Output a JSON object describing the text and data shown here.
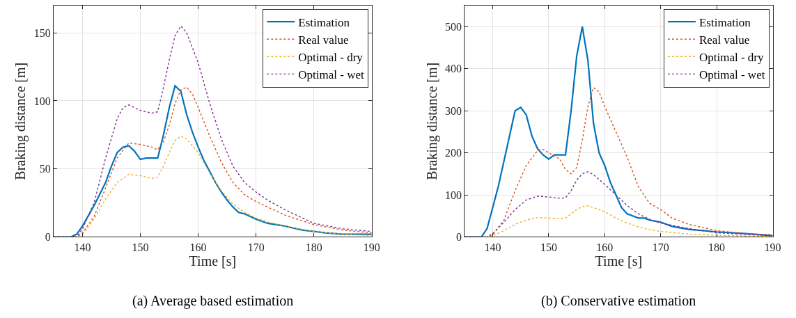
{
  "chart_data": [
    {
      "type": "line",
      "title": "(a) Average based estimation",
      "xlabel": "Time [s]",
      "ylabel": "Braking distance [m]",
      "xlim": [
        135,
        190
      ],
      "xticks": [
        140,
        150,
        160,
        170,
        180,
        190
      ],
      "ylim": [
        0,
        170
      ],
      "yticks": [
        0,
        50,
        100,
        150
      ],
      "grid": true,
      "legend": "top right",
      "series": [
        {
          "name": "Estimation",
          "color": "#0072bd",
          "line_style": "solid",
          "x": [
            135,
            138,
            139,
            140,
            142,
            144,
            145,
            146,
            147,
            148,
            149,
            150,
            151,
            152,
            153,
            154,
            155,
            156,
            157,
            158,
            159,
            160,
            161,
            162,
            163,
            164,
            165,
            166,
            167,
            168,
            170,
            172,
            175,
            178,
            180,
            182,
            185,
            190
          ],
          "values": [
            0,
            0,
            2,
            8,
            23,
            40,
            52,
            62,
            66,
            67,
            63,
            57,
            58,
            58,
            58,
            75,
            95,
            111,
            107,
            90,
            77,
            66,
            56,
            48,
            40,
            33,
            27,
            22,
            18,
            17,
            13,
            10,
            8,
            5,
            4,
            3,
            2,
            2
          ]
        },
        {
          "name": "Real value",
          "color": "#d95319",
          "line_style": "dotted",
          "x": [
            135,
            139,
            140,
            142,
            144,
            146,
            148,
            150,
            152,
            153,
            154,
            155,
            156,
            157,
            158,
            159,
            160,
            162,
            164,
            166,
            168,
            170,
            172,
            175,
            180,
            185,
            190
          ],
          "values": [
            0,
            0,
            3,
            15,
            36,
            58,
            69,
            68,
            66,
            64,
            70,
            82,
            98,
            108,
            110,
            105,
            95,
            74,
            55,
            40,
            31,
            26,
            22,
            16,
            9,
            5,
            3
          ]
        },
        {
          "name": "Optimal - dry",
          "color": "#edb120",
          "line_style": "dotted",
          "x": [
            135,
            139,
            140,
            142,
            144,
            146,
            148,
            150,
            152,
            153,
            154,
            155,
            156,
            157,
            158,
            160,
            162,
            164,
            166,
            168,
            170,
            172,
            175,
            180,
            185,
            190
          ],
          "values": [
            0,
            0,
            2,
            13,
            28,
            40,
            46,
            45,
            43,
            44,
            52,
            62,
            71,
            74,
            72,
            62,
            47,
            34,
            24,
            18,
            14,
            11,
            8,
            4,
            2,
            1
          ]
        },
        {
          "name": "Optimal - wet",
          "color": "#7e2f8e",
          "line_style": "dotted",
          "x": [
            135,
            139,
            140,
            142,
            144,
            146,
            147,
            148,
            150,
            152,
            153,
            154,
            155,
            156,
            157,
            158,
            160,
            162,
            164,
            166,
            168,
            170,
            172,
            175,
            180,
            185,
            190
          ],
          "values": [
            0,
            0,
            6,
            25,
            58,
            87,
            95,
            97,
            93,
            91,
            92,
            110,
            130,
            148,
            155,
            150,
            128,
            98,
            72,
            52,
            40,
            33,
            27,
            20,
            10,
            6,
            4
          ]
        }
      ]
    },
    {
      "type": "line",
      "title": "(b) Conservative estimation",
      "xlabel": "Time [s]",
      "ylabel": "Braking distance [m]",
      "xlim": [
        135,
        190
      ],
      "xticks": [
        140,
        150,
        160,
        170,
        180,
        190
      ],
      "ylim": [
        0,
        550
      ],
      "yticks": [
        0,
        100,
        200,
        300,
        400,
        500
      ],
      "grid": true,
      "legend": "top right",
      "series": [
        {
          "name": "Estimation",
          "color": "#0072bd",
          "line_style": "solid",
          "x": [
            135,
            138,
            139,
            140,
            141,
            142,
            143,
            144,
            145,
            146,
            147,
            148,
            149,
            150,
            151,
            152,
            153,
            154,
            155,
            156,
            157,
            158,
            159,
            160,
            161,
            162,
            163,
            164,
            165,
            166,
            167,
            168,
            170,
            172,
            175,
            180,
            185,
            190
          ],
          "values": [
            0,
            0,
            20,
            70,
            120,
            180,
            240,
            300,
            308,
            290,
            240,
            210,
            195,
            185,
            195,
            195,
            195,
            300,
            430,
            500,
            420,
            270,
            200,
            170,
            130,
            100,
            70,
            55,
            50,
            45,
            45,
            40,
            35,
            25,
            18,
            12,
            8,
            3
          ]
        },
        {
          "name": "Real value",
          "color": "#d95319",
          "line_style": "dotted",
          "x": [
            135,
            139,
            140,
            142,
            144,
            146,
            148,
            149,
            150,
            152,
            153,
            154,
            155,
            156,
            157,
            158,
            159,
            160,
            162,
            164,
            166,
            168,
            170,
            172,
            175,
            180,
            185,
            190
          ],
          "values": [
            0,
            0,
            5,
            40,
            110,
            170,
            205,
            208,
            200,
            185,
            160,
            150,
            165,
            230,
            310,
            355,
            345,
            310,
            250,
            190,
            120,
            80,
            65,
            45,
            30,
            15,
            8,
            5
          ]
        },
        {
          "name": "Optimal - dry",
          "color": "#edb120",
          "line_style": "dotted",
          "x": [
            135,
            139,
            140,
            142,
            144,
            146,
            148,
            150,
            152,
            153,
            154,
            155,
            156,
            157,
            158,
            160,
            162,
            164,
            166,
            168,
            170,
            175,
            180,
            190
          ],
          "values": [
            0,
            0,
            3,
            15,
            30,
            40,
            46,
            45,
            43,
            45,
            55,
            65,
            72,
            74,
            70,
            60,
            45,
            33,
            24,
            17,
            13,
            7,
            4,
            1
          ]
        },
        {
          "name": "Optimal - wet",
          "color": "#7e2f8e",
          "line_style": "dotted",
          "x": [
            135,
            139,
            140,
            142,
            144,
            146,
            148,
            150,
            152,
            153,
            154,
            155,
            156,
            157,
            158,
            160,
            162,
            164,
            166,
            168,
            170,
            175,
            180,
            185,
            190
          ],
          "values": [
            0,
            0,
            8,
            35,
            65,
            88,
            97,
            95,
            92,
            93,
            110,
            135,
            150,
            155,
            148,
            125,
            100,
            75,
            55,
            42,
            33,
            20,
            10,
            6,
            3
          ]
        }
      ]
    }
  ]
}
